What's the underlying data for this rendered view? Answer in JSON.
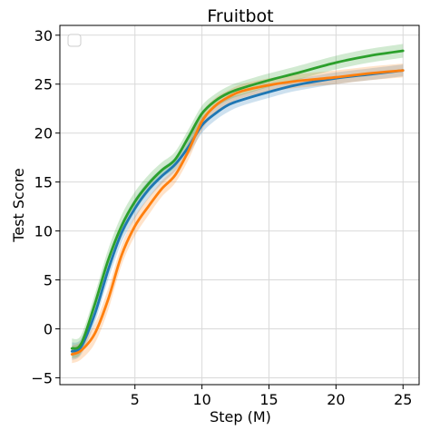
{
  "chart_data": {
    "type": "line",
    "title": "Fruitbot",
    "xlabel": "Step (M)",
    "ylabel": "Test Score",
    "xlim": [
      -0.6,
      26.2
    ],
    "ylim": [
      -5.7,
      31.0
    ],
    "xticks": [
      5,
      10,
      15,
      20,
      25
    ],
    "yticks": [
      -5,
      0,
      5,
      10,
      15,
      20,
      25,
      30
    ],
    "grid": true,
    "legend": {
      "placement": "top-left",
      "entries": []
    },
    "series": [
      {
        "color": "#1f77b4",
        "x": [
          0.3,
          1.0,
          2.0,
          3.0,
          4.0,
          5.0,
          6.0,
          7.0,
          8.0,
          9.0,
          10.0,
          11.0,
          12.0,
          13.0,
          15.0,
          17.0,
          20.0,
          22.5,
          25.0
        ],
        "y": [
          -2.3,
          -1.8,
          1.5,
          6.0,
          9.8,
          12.3,
          14.2,
          15.6,
          16.8,
          18.6,
          20.8,
          22.0,
          22.9,
          23.4,
          24.2,
          24.9,
          25.6,
          26.0,
          26.4
        ],
        "band": [
          0.9,
          0.8,
          0.9,
          1.0,
          1.0,
          1.0,
          0.9,
          0.8,
          0.7,
          0.8,
          0.8,
          0.7,
          0.7,
          0.6,
          0.6,
          0.6,
          0.6,
          0.6,
          0.6
        ]
      },
      {
        "color": "#ff7f0e",
        "x": [
          0.3,
          1.0,
          2.0,
          3.0,
          4.0,
          5.0,
          6.0,
          7.0,
          8.0,
          9.0,
          10.0,
          11.0,
          12.0,
          13.0,
          15.0,
          17.0,
          20.0,
          22.5,
          25.0
        ],
        "y": [
          -2.6,
          -2.2,
          -0.5,
          3.0,
          7.5,
          10.5,
          12.5,
          14.3,
          15.7,
          18.2,
          21.2,
          22.8,
          23.7,
          24.3,
          24.9,
          25.3,
          25.7,
          26.1,
          26.4
        ],
        "band": [
          0.9,
          0.9,
          1.0,
          1.1,
          1.0,
          1.0,
          0.9,
          0.8,
          0.8,
          0.9,
          0.9,
          0.8,
          0.7,
          0.7,
          0.7,
          0.7,
          0.7,
          0.7,
          0.7
        ]
      },
      {
        "color": "#2ca02c",
        "x": [
          0.3,
          1.0,
          2.0,
          3.0,
          4.0,
          5.0,
          6.0,
          7.0,
          8.0,
          9.0,
          10.0,
          11.0,
          12.0,
          13.0,
          15.0,
          17.0,
          20.0,
          22.5,
          25.0
        ],
        "y": [
          -2.0,
          -1.5,
          2.5,
          7.0,
          10.5,
          13.0,
          14.8,
          16.2,
          17.3,
          19.6,
          22.0,
          23.3,
          24.1,
          24.6,
          25.4,
          26.1,
          27.2,
          27.9,
          28.4
        ],
        "band": [
          1.0,
          0.9,
          1.0,
          1.1,
          1.1,
          1.0,
          0.9,
          0.8,
          0.8,
          0.8,
          0.8,
          0.7,
          0.7,
          0.7,
          0.7,
          0.7,
          0.7,
          0.7,
          0.7
        ]
      }
    ]
  }
}
